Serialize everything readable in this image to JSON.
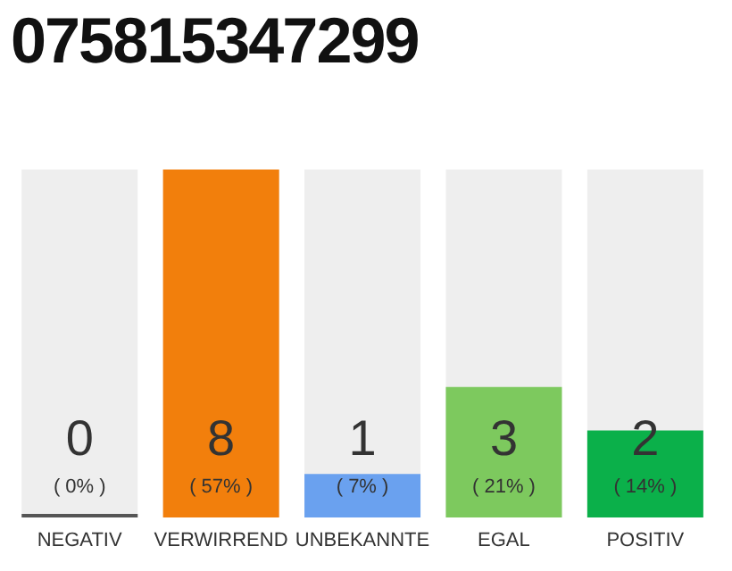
{
  "chart_data": {
    "type": "bar",
    "title": "075815347299",
    "categories": [
      "NEGATIV",
      "VERWIRREND",
      "UNBEKANNTE",
      "EGAL",
      "POSITIV"
    ],
    "values": [
      0,
      8,
      1,
      3,
      2
    ],
    "colors": [
      "#555555",
      "#f27f0c",
      "#6aa1ef",
      "#7dc95e",
      "#0bb04a"
    ],
    "data_labels": true,
    "annotations": [
      "( 0% )",
      "( 57% )",
      "( 7% )",
      "( 21% )",
      "( 14% )"
    ]
  }
}
